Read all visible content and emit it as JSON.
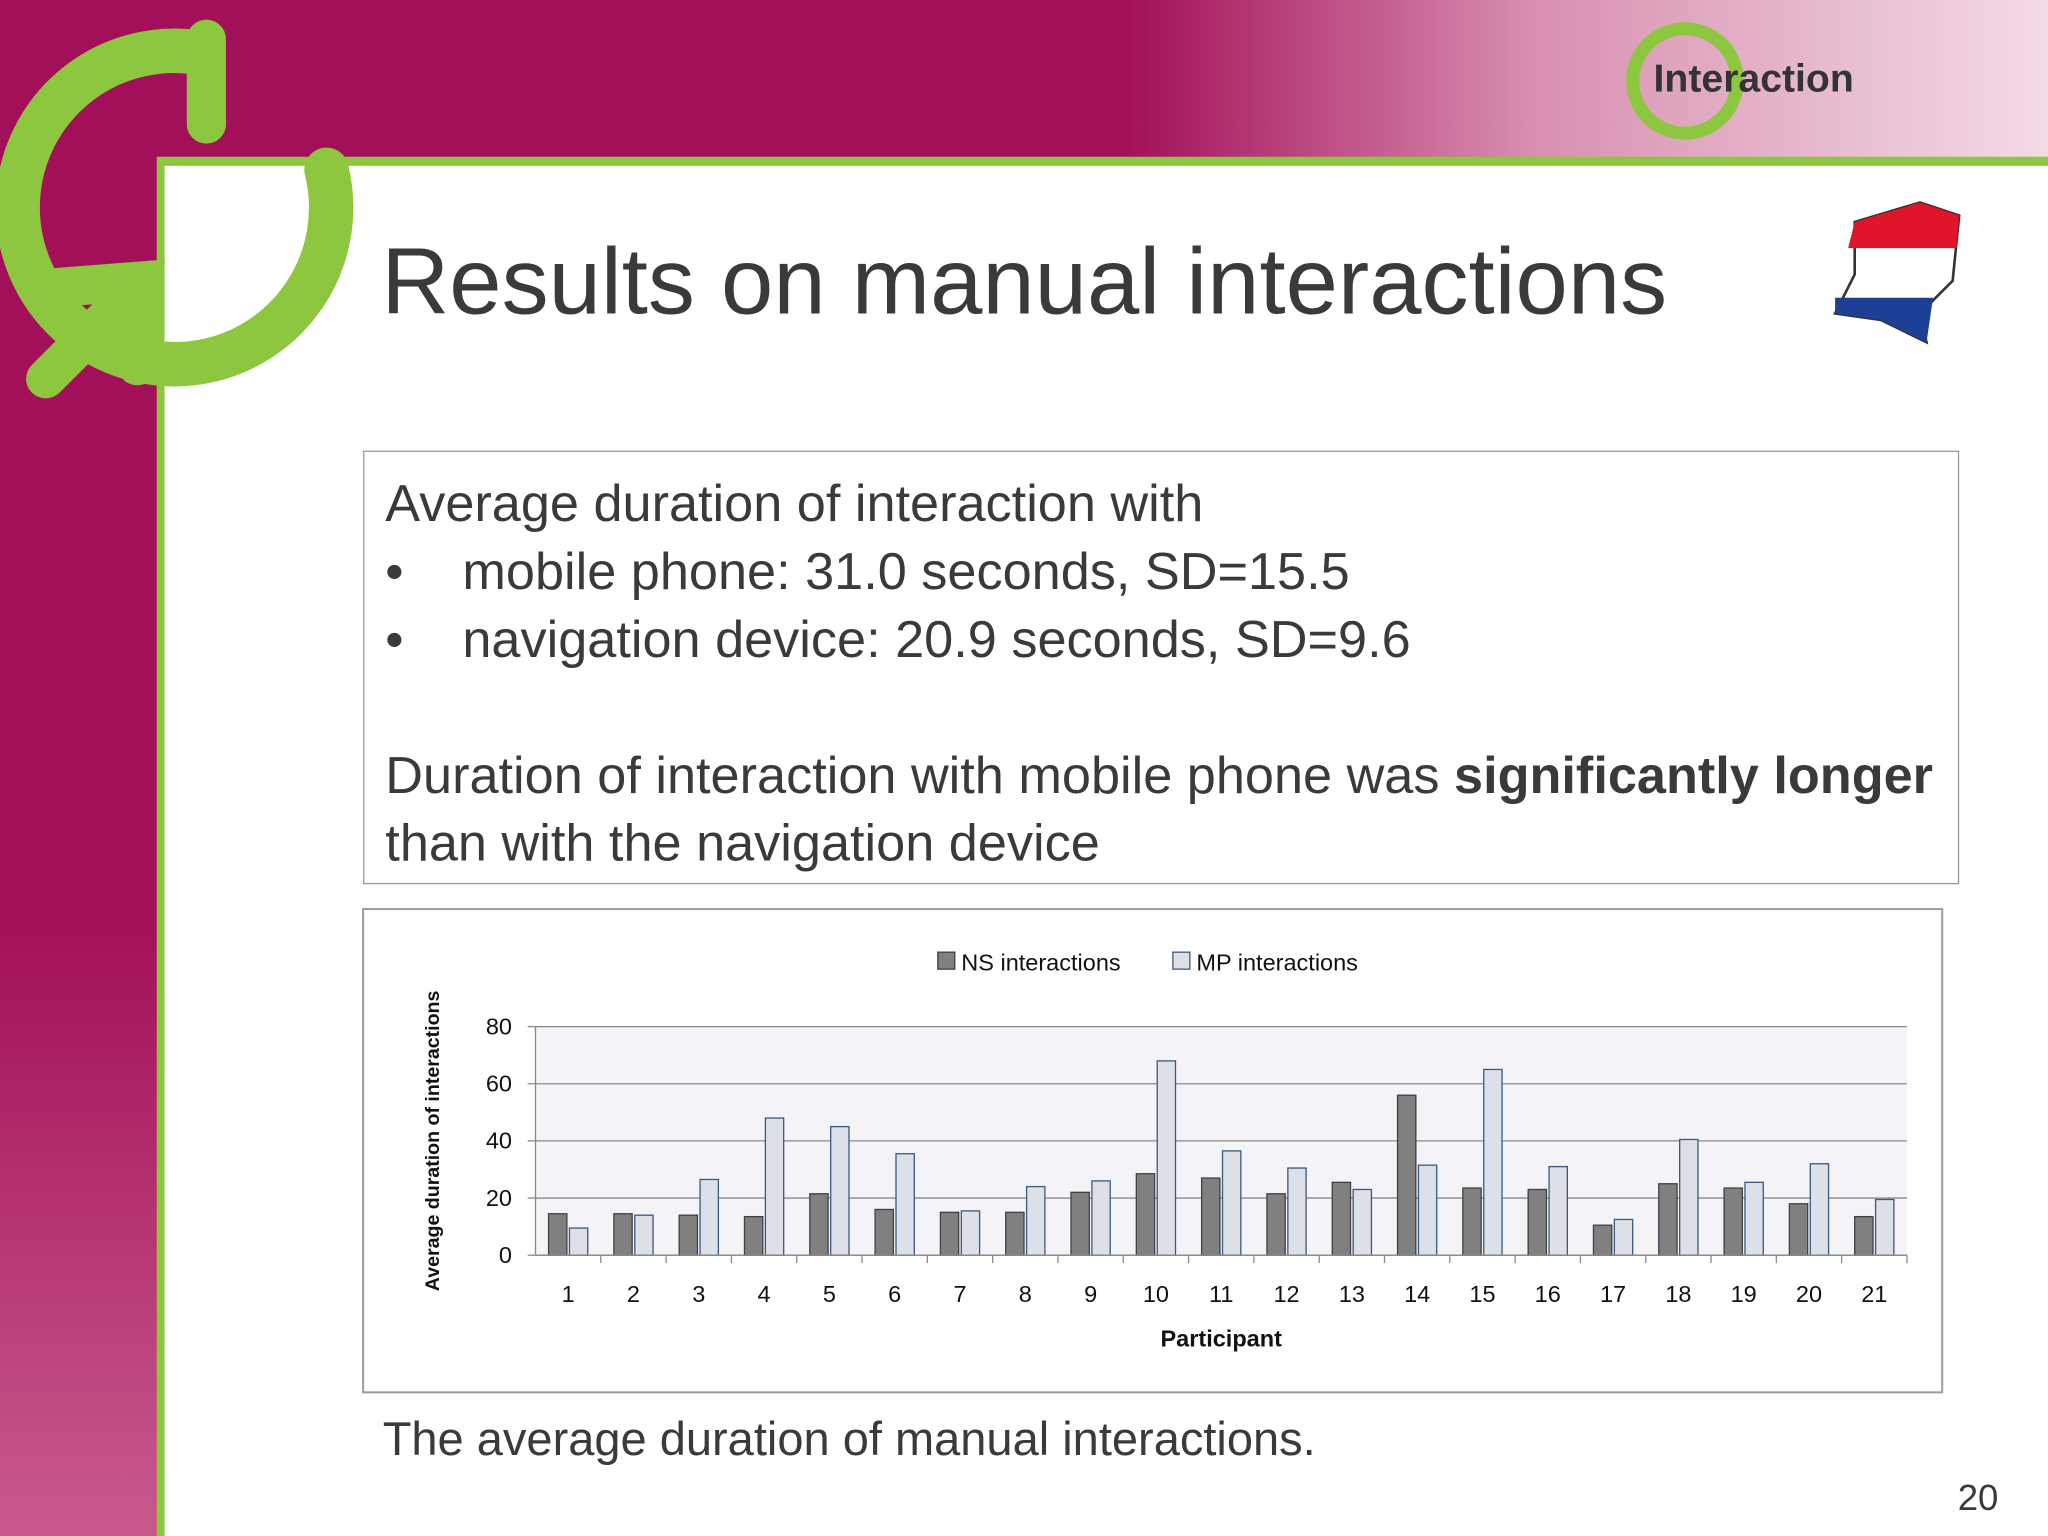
{
  "logo": "Interaction",
  "title": "Results on manual interactions",
  "text_box": {
    "heading": "Average duration of interaction with",
    "bullets": [
      "mobile phone: 31.0 seconds, SD=15.5",
      "navigation device: 20.9 seconds, SD=9.6"
    ],
    "conclusion": [
      "Duration of interaction with mobile phone was",
      "significantly longer",
      "than with the navigation device"
    ]
  },
  "chart_data": {
    "type": "bar",
    "ylabel": "Average duration of interactions",
    "xlabel": "Participant",
    "categories": [
      "1",
      "2",
      "3",
      "4",
      "5",
      "6",
      "7",
      "8",
      "9",
      "10",
      "11",
      "12",
      "13",
      "14",
      "15",
      "16",
      "17",
      "18",
      "19",
      "20",
      "21"
    ],
    "series": [
      {
        "name": "NS interactions",
        "color": "#808080",
        "values": [
          14.5,
          14.5,
          14,
          13.5,
          21.5,
          16,
          15,
          15,
          22,
          28.5,
          27,
          21.5,
          25.5,
          56,
          23.5,
          23,
          10.5,
          25,
          23.5,
          18,
          13.5
        ]
      },
      {
        "name": "MP interactions",
        "color": "#dde0e6",
        "values": [
          9.5,
          14,
          26.5,
          48,
          45,
          35.5,
          15.5,
          24,
          26,
          68,
          36.5,
          30.5,
          23,
          31.5,
          65,
          31,
          12.5,
          40.5,
          25.5,
          32,
          19.5
        ]
      }
    ],
    "ylim": [
      0,
      80
    ],
    "yticks": [
      0,
      20,
      40,
      60,
      80
    ],
    "grid": true,
    "legend": "top"
  },
  "caption": "The average duration of manual interactions.",
  "page_number": "20"
}
